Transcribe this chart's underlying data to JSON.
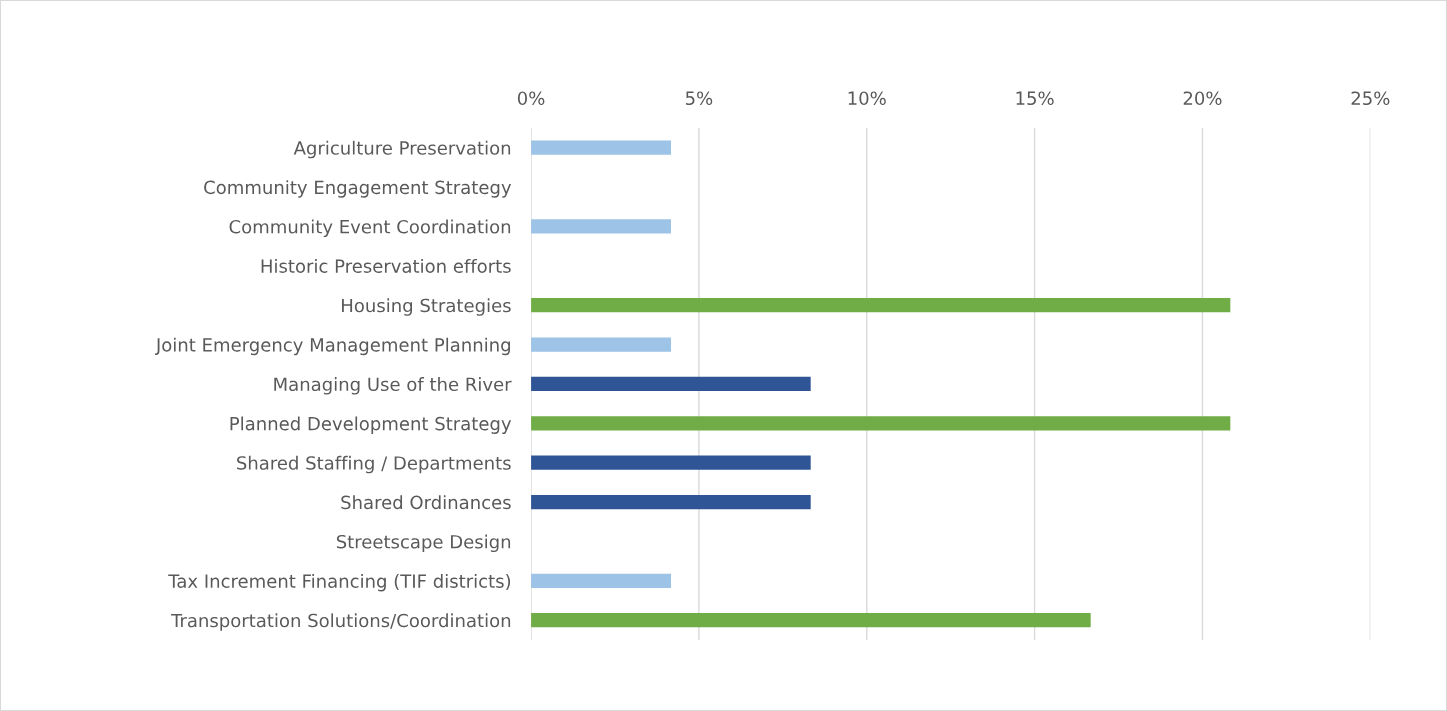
{
  "chart_data": {
    "type": "bar",
    "orientation": "horizontal",
    "categories": [
      "Agriculture Preservation",
      "Community Engagement Strategy",
      "Community Event Coordination",
      "Historic Preservation efforts",
      "Housing Strategies",
      "Joint Emergency Management Planning",
      "Managing Use of the River",
      "Planned Development Strategy",
      "Shared Staffing / Departments",
      "Shared Ordinances",
      "Streetscape Design",
      "Tax Increment Financing (TIF districts)",
      "Transportation Solutions/Coordination"
    ],
    "values": [
      4.17,
      null,
      4.17,
      null,
      20.83,
      4.17,
      8.33,
      20.83,
      8.33,
      8.33,
      null,
      4.17,
      16.67
    ],
    "colors": [
      "#9dc3e6",
      null,
      "#9dc3e6",
      null,
      "#70ad47",
      "#9dc3e6",
      "#2f5597",
      "#70ad47",
      "#2f5597",
      "#2f5597",
      null,
      "#9dc3e6",
      "#70ad47"
    ],
    "xlim": [
      0,
      25
    ],
    "xticks": [
      {
        "value": 0,
        "label": "0%"
      },
      {
        "value": 5,
        "label": "5%"
      },
      {
        "value": 10,
        "label": "10%"
      },
      {
        "value": 15,
        "label": "15%"
      },
      {
        "value": 20,
        "label": "20%"
      },
      {
        "value": 25,
        "label": "25%"
      }
    ],
    "grid": "x"
  }
}
